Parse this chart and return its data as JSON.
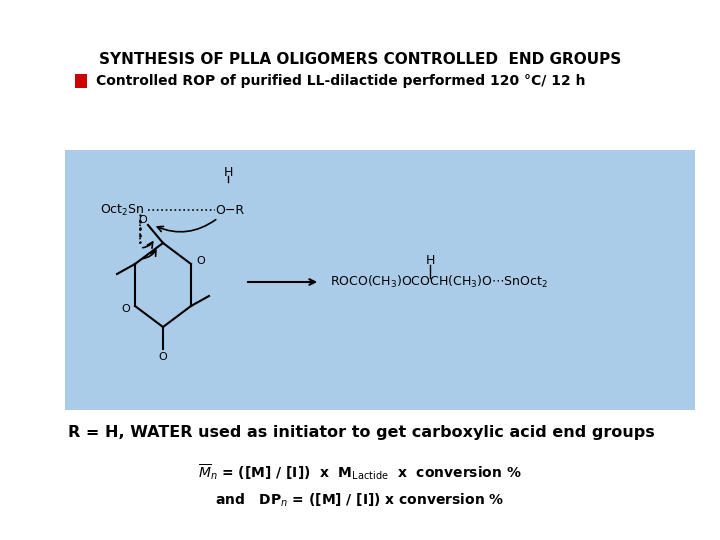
{
  "title": "SYNTHESIS OF PLLA OLIGOMERS CONTROLLED  END GROUPS",
  "subtitle": "Controlled ROP of purified LL-dilactide performed 120 °C/ 12 h",
  "bg_color": "#aacce8",
  "r_eq_h_text": "R = H, WATER used as initiator to get carboxylic acid end groups",
  "red_bullet_color": "#cc0000",
  "white_bg": "#ffffff",
  "title_fontsize": 11,
  "subtitle_fontsize": 10,
  "body_fontsize": 10,
  "formula_fontsize": 10
}
